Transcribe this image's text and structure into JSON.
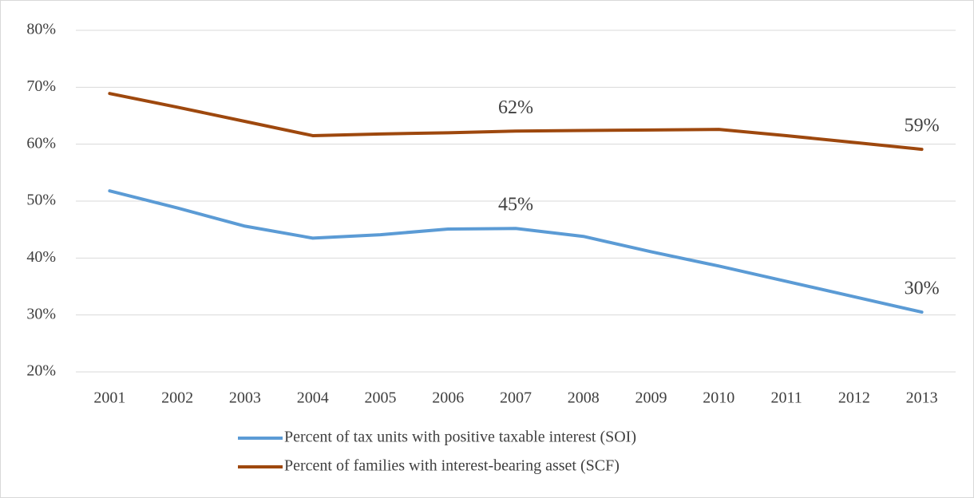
{
  "chart_data": {
    "type": "line",
    "categories": [
      "2001",
      "2002",
      "2003",
      "2004",
      "2005",
      "2006",
      "2007",
      "2008",
      "2009",
      "2010",
      "2011",
      "2012",
      "2013"
    ],
    "series": [
      {
        "name": "Percent of tax units with positive taxable interest (SOI)",
        "color": "#5b9bd5",
        "values": [
          51.8,
          48.8,
          45.6,
          43.5,
          44.1,
          45.1,
          45.2,
          43.8,
          41.1,
          38.6,
          35.9,
          33.2,
          30.5
        ],
        "value_labels": [
          null,
          null,
          null,
          null,
          null,
          null,
          "45%",
          null,
          null,
          null,
          null,
          null,
          "30%"
        ]
      },
      {
        "name": "Percent of families with interest-bearing asset (SCF)",
        "color": "#9e480e",
        "values": [
          68.9,
          66.5,
          64.0,
          61.5,
          61.8,
          62.0,
          62.3,
          62.4,
          62.5,
          62.6,
          61.5,
          60.3,
          59.1
        ],
        "value_labels": [
          null,
          null,
          null,
          null,
          null,
          null,
          "62%",
          null,
          null,
          null,
          null,
          null,
          "59%"
        ]
      }
    ],
    "ylim": [
      20,
      80
    ],
    "yticks": [
      {
        "value": 20,
        "label": "20%"
      },
      {
        "value": 30,
        "label": "30%"
      },
      {
        "value": 40,
        "label": "40%"
      },
      {
        "value": 50,
        "label": "50%"
      },
      {
        "value": 60,
        "label": "60%"
      },
      {
        "value": 70,
        "label": "70%"
      },
      {
        "value": 80,
        "label": "80%"
      }
    ],
    "grid": true,
    "legend": "bottom"
  }
}
